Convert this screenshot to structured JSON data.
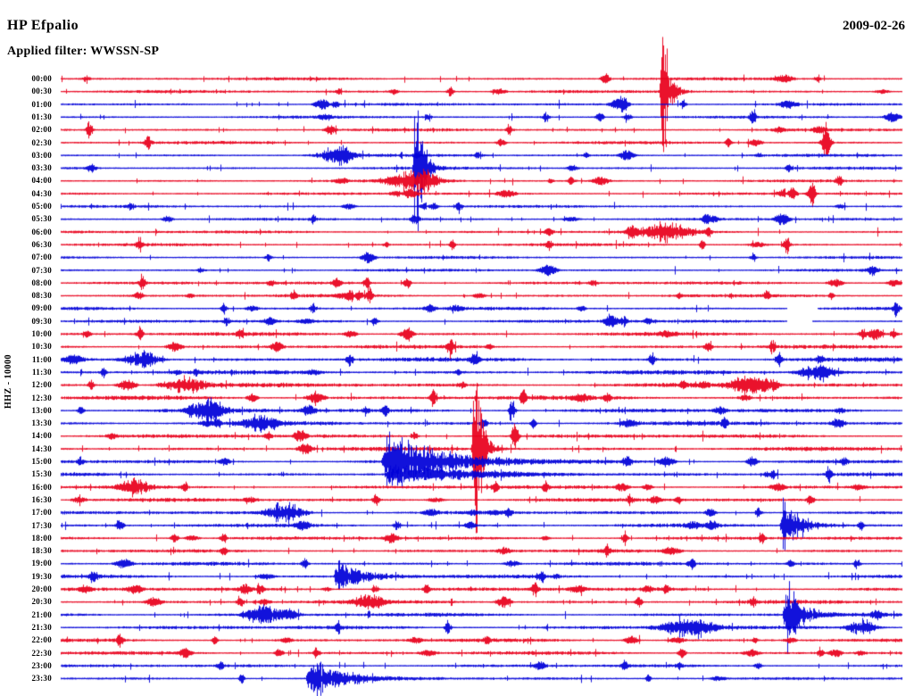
{
  "header": {
    "station": "HP Efpalio",
    "date": "2009-02-26",
    "filter_label": "Applied filter: WWSSN-SP"
  },
  "axis": {
    "channel_label": "HHZ - 10000"
  },
  "colors": {
    "red": "#e8001c",
    "blue": "#0000d8",
    "background": "#ffffff",
    "text": "#000000"
  },
  "chart_data": {
    "type": "helicorder",
    "station": "HP Efpalio",
    "date": "2009-02-26",
    "filter": "WWSSN-SP",
    "channel_label": "HHZ - 10000",
    "minutes_per_line": 30,
    "line_time_range_min": [
      0,
      30
    ],
    "rows": [
      {
        "time": "00:00",
        "color": "red",
        "noise": 1.0
      },
      {
        "time": "00:30",
        "color": "red",
        "noise": 1.0
      },
      {
        "time": "01:00",
        "color": "blue",
        "noise": 0.9
      },
      {
        "time": "01:30",
        "color": "blue",
        "noise": 0.9
      },
      {
        "time": "02:00",
        "color": "red",
        "noise": 1.0
      },
      {
        "time": "02:30",
        "color": "red",
        "noise": 1.0
      },
      {
        "time": "03:00",
        "color": "blue",
        "noise": 1.0
      },
      {
        "time": "03:30",
        "color": "blue",
        "noise": 1.0
      },
      {
        "time": "04:00",
        "color": "red",
        "noise": 0.9
      },
      {
        "time": "04:30",
        "color": "red",
        "noise": 0.9
      },
      {
        "time": "05:00",
        "color": "blue",
        "noise": 0.9
      },
      {
        "time": "05:30",
        "color": "blue",
        "noise": 0.9
      },
      {
        "time": "06:00",
        "color": "red",
        "noise": 1.0
      },
      {
        "time": "06:30",
        "color": "red",
        "noise": 1.0
      },
      {
        "time": "07:00",
        "color": "blue",
        "noise": 0.9
      },
      {
        "time": "07:30",
        "color": "blue",
        "noise": 0.9
      },
      {
        "time": "08:00",
        "color": "red",
        "noise": 1.1
      },
      {
        "time": "08:30",
        "color": "red",
        "noise": 1.1
      },
      {
        "time": "09:00",
        "color": "blue",
        "noise": 1.1
      },
      {
        "time": "09:30",
        "color": "blue",
        "noise": 1.1
      },
      {
        "time": "10:00",
        "color": "red",
        "noise": 1.3
      },
      {
        "time": "10:30",
        "color": "red",
        "noise": 1.3
      },
      {
        "time": "11:00",
        "color": "blue",
        "noise": 1.5
      },
      {
        "time": "11:30",
        "color": "blue",
        "noise": 1.5
      },
      {
        "time": "12:00",
        "color": "red",
        "noise": 1.5
      },
      {
        "time": "12:30",
        "color": "red",
        "noise": 1.5
      },
      {
        "time": "13:00",
        "color": "blue",
        "noise": 1.5
      },
      {
        "time": "13:30",
        "color": "blue",
        "noise": 1.5
      },
      {
        "time": "14:00",
        "color": "red",
        "noise": 1.4
      },
      {
        "time": "14:30",
        "color": "red",
        "noise": 1.4
      },
      {
        "time": "15:00",
        "color": "blue",
        "noise": 1.4
      },
      {
        "time": "15:30",
        "color": "blue",
        "noise": 1.4
      },
      {
        "time": "16:00",
        "color": "red",
        "noise": 1.3
      },
      {
        "time": "16:30",
        "color": "red",
        "noise": 1.3
      },
      {
        "time": "17:00",
        "color": "blue",
        "noise": 1.2
      },
      {
        "time": "17:30",
        "color": "blue",
        "noise": 1.2
      },
      {
        "time": "18:00",
        "color": "red",
        "noise": 1.2
      },
      {
        "time": "18:30",
        "color": "red",
        "noise": 1.2
      },
      {
        "time": "19:00",
        "color": "blue",
        "noise": 1.2
      },
      {
        "time": "19:30",
        "color": "blue",
        "noise": 1.2
      },
      {
        "time": "20:00",
        "color": "red",
        "noise": 1.3
      },
      {
        "time": "20:30",
        "color": "red",
        "noise": 1.3
      },
      {
        "time": "21:00",
        "color": "blue",
        "noise": 1.3
      },
      {
        "time": "21:30",
        "color": "blue",
        "noise": 1.3
      },
      {
        "time": "22:00",
        "color": "red",
        "noise": 1.2
      },
      {
        "time": "22:30",
        "color": "red",
        "noise": 1.2
      },
      {
        "time": "23:00",
        "color": "blue",
        "noise": 1.0
      },
      {
        "time": "23:30",
        "color": "blue",
        "noise": 1.0
      }
    ],
    "events": [
      {
        "row": 0,
        "t": 0.9,
        "amp": 5
      },
      {
        "row": 0,
        "t": 25.5,
        "amp": 4
      },
      {
        "row": 0,
        "t": 27.0,
        "amp": 5
      },
      {
        "row": 1,
        "t": 21.4,
        "amp": 120,
        "shape": "quake",
        "dur": 0.2
      },
      {
        "row": 1,
        "t": 13.9,
        "amp": 7
      },
      {
        "row": 2,
        "t": 20.1,
        "amp": 9
      },
      {
        "row": 2,
        "t": 22.2,
        "amp": 6
      },
      {
        "row": 3,
        "t": 13.1,
        "amp": 6
      },
      {
        "row": 3,
        "t": 17.3,
        "amp": 7
      },
      {
        "row": 3,
        "t": 24.7,
        "amp": 13
      },
      {
        "row": 4,
        "t": 1.0,
        "amp": 13
      },
      {
        "row": 4,
        "t": 16.0,
        "amp": 7
      },
      {
        "row": 5,
        "t": 3.1,
        "amp": 11
      },
      {
        "row": 5,
        "t": 27.3,
        "amp": 22
      },
      {
        "row": 6,
        "t": 9.8,
        "amp": 11,
        "shape": "burst",
        "dur": 0.8
      },
      {
        "row": 6,
        "t": 14.9,
        "amp": 6
      },
      {
        "row": 7,
        "t": 12.6,
        "amp": 150,
        "shape": "quake",
        "dur": 0.2
      },
      {
        "row": 8,
        "t": 12.6,
        "amp": 13,
        "shape": "burst",
        "dur": 1.2
      },
      {
        "row": 8,
        "t": 18.2,
        "amp": 7
      },
      {
        "row": 9,
        "t": 26.8,
        "amp": 16
      },
      {
        "row": 10,
        "t": 14.2,
        "amp": 8
      },
      {
        "row": 10,
        "t": 2.5,
        "amp": 5
      },
      {
        "row": 11,
        "t": 9.0,
        "amp": 6
      },
      {
        "row": 11,
        "t": 23.0,
        "amp": 5
      },
      {
        "row": 12,
        "t": 21.6,
        "amp": 13,
        "shape": "burst",
        "dur": 1.2
      },
      {
        "row": 12,
        "t": 23.1,
        "amp": 7
      },
      {
        "row": 13,
        "t": 2.8,
        "amp": 9
      },
      {
        "row": 13,
        "t": 17.4,
        "amp": 6
      },
      {
        "row": 13,
        "t": 25.9,
        "amp": 15
      },
      {
        "row": 14,
        "t": 7.4,
        "amp": 5
      },
      {
        "row": 14,
        "t": 24.7,
        "amp": 8
      },
      {
        "row": 15,
        "t": 5.0,
        "amp": 4
      },
      {
        "row": 16,
        "t": 2.9,
        "amp": 11
      },
      {
        "row": 16,
        "t": 10.9,
        "amp": 8
      },
      {
        "row": 16,
        "t": 19.0,
        "amp": 5
      },
      {
        "row": 17,
        "t": 8.3,
        "amp": 7
      },
      {
        "row": 17,
        "t": 11.0,
        "amp": 13
      },
      {
        "row": 17,
        "t": 25.2,
        "amp": 7
      },
      {
        "row": 18,
        "t": 5.8,
        "amp": 7
      },
      {
        "row": 18,
        "t": 9.0,
        "amp": 9
      },
      {
        "row": 18,
        "t": 29.8,
        "amp": 10
      },
      {
        "row": 19,
        "t": 5.9,
        "amp": 6
      },
      {
        "row": 19,
        "t": 11.2,
        "amp": 7
      },
      {
        "row": 19,
        "t": 20.1,
        "amp": 9
      },
      {
        "row": 20,
        "t": 2.8,
        "amp": 13
      },
      {
        "row": 20,
        "t": 6.4,
        "amp": 7
      },
      {
        "row": 20,
        "t": 28.6,
        "amp": 9
      },
      {
        "row": 20,
        "t": 29.7,
        "amp": 7
      },
      {
        "row": 21,
        "t": 13.9,
        "amp": 15
      },
      {
        "row": 21,
        "t": 25.4,
        "amp": 11
      },
      {
        "row": 22,
        "t": 2.9,
        "amp": 12,
        "shape": "burst",
        "dur": 0.8
      },
      {
        "row": 22,
        "t": 10.3,
        "amp": 11
      },
      {
        "row": 22,
        "t": 21.1,
        "amp": 9
      },
      {
        "row": 22,
        "t": 25.6,
        "amp": 11
      },
      {
        "row": 22,
        "t": 27.1,
        "amp": 7
      },
      {
        "row": 23,
        "t": 1.5,
        "amp": 7
      },
      {
        "row": 23,
        "t": 27.0,
        "amp": 13,
        "shape": "burst",
        "dur": 0.8
      },
      {
        "row": 24,
        "t": 4.4,
        "amp": 11,
        "shape": "burst",
        "dur": 1.0
      },
      {
        "row": 24,
        "t": 22.2,
        "amp": 7
      },
      {
        "row": 24,
        "t": 24.6,
        "amp": 13,
        "shape": "burst",
        "dur": 0.9
      },
      {
        "row": 25,
        "t": 13.3,
        "amp": 13
      },
      {
        "row": 25,
        "t": 16.5,
        "amp": 11
      },
      {
        "row": 25,
        "t": 19.5,
        "amp": 6
      },
      {
        "row": 26,
        "t": 0.7,
        "amp": 7
      },
      {
        "row": 26,
        "t": 5.3,
        "amp": 13,
        "shape": "burst",
        "dur": 0.8
      },
      {
        "row": 26,
        "t": 16.1,
        "amp": 20
      },
      {
        "row": 27,
        "t": 5.6,
        "amp": 9
      },
      {
        "row": 27,
        "t": 7.1,
        "amp": 11,
        "shape": "burst",
        "dur": 0.8
      },
      {
        "row": 28,
        "t": 7.4,
        "amp": 9
      },
      {
        "row": 28,
        "t": 16.2,
        "amp": 24
      },
      {
        "row": 28,
        "t": 12.6,
        "amp": 7
      },
      {
        "row": 29,
        "t": 14.7,
        "amp": 190,
        "shape": "quake",
        "dur": 0.2
      },
      {
        "row": 30,
        "t": 11.5,
        "amp": 42,
        "shape": "quake",
        "dur": 1.8
      },
      {
        "row": 30,
        "t": 0.7,
        "amp": 6
      },
      {
        "row": 31,
        "t": 11.6,
        "amp": 13,
        "shape": "quake",
        "dur": 2.5
      },
      {
        "row": 31,
        "t": 25.4,
        "amp": 7
      },
      {
        "row": 31,
        "t": 27.4,
        "amp": 11
      },
      {
        "row": 32,
        "t": 2.6,
        "amp": 11,
        "shape": "burst",
        "dur": 0.7
      },
      {
        "row": 32,
        "t": 4.4,
        "amp": 7
      },
      {
        "row": 32,
        "t": 15.5,
        "amp": 9
      },
      {
        "row": 32,
        "t": 17.3,
        "amp": 7
      },
      {
        "row": 33,
        "t": 20.3,
        "amp": 7
      },
      {
        "row": 33,
        "t": 22.0,
        "amp": 6
      },
      {
        "row": 34,
        "t": 8.0,
        "amp": 14,
        "shape": "burst",
        "dur": 0.9
      },
      {
        "row": 34,
        "t": 24.9,
        "amp": 9
      },
      {
        "row": 35,
        "t": 25.7,
        "amp": 48,
        "shape": "quake",
        "dur": 0.5
      },
      {
        "row": 35,
        "t": 12.0,
        "amp": 7
      },
      {
        "row": 36,
        "t": 5.8,
        "amp": 7
      },
      {
        "row": 36,
        "t": 20.1,
        "amp": 9
      },
      {
        "row": 37,
        "t": 19.5,
        "amp": 8
      },
      {
        "row": 37,
        "t": 5.8,
        "amp": 6
      },
      {
        "row": 38,
        "t": 8.7,
        "amp": 7
      },
      {
        "row": 38,
        "t": 22.5,
        "amp": 9
      },
      {
        "row": 38,
        "t": 28.4,
        "amp": 7
      },
      {
        "row": 39,
        "t": 9.8,
        "amp": 26,
        "shape": "quake",
        "dur": 0.8
      },
      {
        "row": 40,
        "t": 7.1,
        "amp": 9
      },
      {
        "row": 40,
        "t": 11.2,
        "amp": 7
      },
      {
        "row": 40,
        "t": 16.9,
        "amp": 9
      },
      {
        "row": 40,
        "t": 21.6,
        "amp": 7
      },
      {
        "row": 41,
        "t": 6.4,
        "amp": 11
      },
      {
        "row": 41,
        "t": 11.0,
        "amp": 9,
        "shape": "burst",
        "dur": 0.7
      },
      {
        "row": 41,
        "t": 24.7,
        "amp": 7
      },
      {
        "row": 42,
        "t": 7.2,
        "amp": 14,
        "shape": "burst",
        "dur": 0.8
      },
      {
        "row": 42,
        "t": 25.8,
        "amp": 55,
        "shape": "quake",
        "dur": 0.45
      },
      {
        "row": 43,
        "t": 9.9,
        "amp": 7
      },
      {
        "row": 43,
        "t": 13.8,
        "amp": 9
      },
      {
        "row": 43,
        "t": 22.4,
        "amp": 15,
        "shape": "burst",
        "dur": 1.2
      },
      {
        "row": 43,
        "t": 28.6,
        "amp": 11,
        "shape": "burst",
        "dur": 0.7
      },
      {
        "row": 44,
        "t": 2.1,
        "amp": 11
      },
      {
        "row": 44,
        "t": 5.5,
        "amp": 7
      },
      {
        "row": 44,
        "t": 15.2,
        "amp": 6
      },
      {
        "row": 45,
        "t": 9.1,
        "amp": 7
      },
      {
        "row": 45,
        "t": 27.1,
        "amp": 6
      },
      {
        "row": 46,
        "t": 5.7,
        "amp": 6
      },
      {
        "row": 46,
        "t": 20.1,
        "amp": 6
      },
      {
        "row": 47,
        "t": 8.8,
        "amp": 28,
        "shape": "quake",
        "dur": 1.0
      }
    ],
    "gaps": [
      {
        "row": 18,
        "t": 25.9,
        "dur": 1.1
      },
      {
        "row": 19,
        "t": 25.9,
        "dur": 0.9
      }
    ]
  }
}
